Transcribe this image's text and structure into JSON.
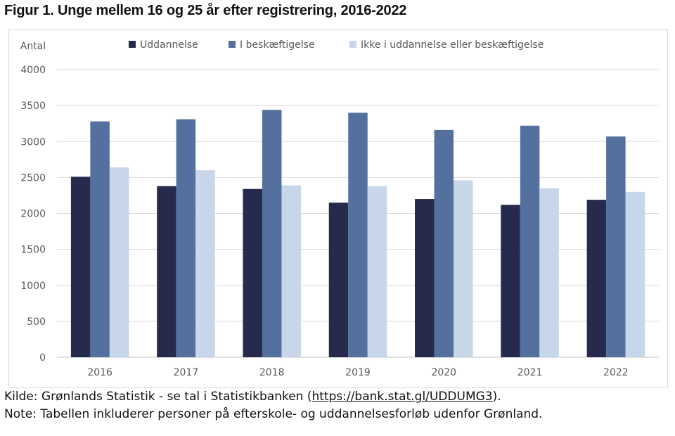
{
  "figure": {
    "title": "Figur 1. Unge mellem 16 og 25 år efter registrering, 2016-2022"
  },
  "chart_data": {
    "type": "bar",
    "ylabel": "Antal",
    "ylim": [
      0,
      4000
    ],
    "yticks": [
      "0",
      "500",
      "1000",
      "1500",
      "2000",
      "2500",
      "3000",
      "3500",
      "4000"
    ],
    "grid": true,
    "legend_position": "top",
    "categories": [
      "2016",
      "2017",
      "2018",
      "2019",
      "2020",
      "2021",
      "2022"
    ],
    "series": [
      {
        "name": "Uddannelse",
        "color": "#262b4d",
        "values": [
          2510,
          2380,
          2340,
          2150,
          2200,
          2120,
          2190
        ]
      },
      {
        "name": "I beskæftigelse",
        "color": "#53709e",
        "values": [
          3280,
          3310,
          3440,
          3400,
          3160,
          3220,
          3070
        ]
      },
      {
        "name": "Ikke i uddannelse eller beskæftigelse",
        "color": "#c7d6e8",
        "values": [
          2640,
          2600,
          2390,
          2380,
          2460,
          2350,
          2300
        ]
      }
    ]
  },
  "notes": {
    "source_prefix": "Kilde: Grønlands Statistik - se tal i Statistikbanken (",
    "source_link": "https://bank.stat.gl/UDDUMG3",
    "source_suffix": ").",
    "note": "Note: Tabellen inkluderer personer på efterskole- og uddannelsesforløb udenfor Grønland."
  }
}
